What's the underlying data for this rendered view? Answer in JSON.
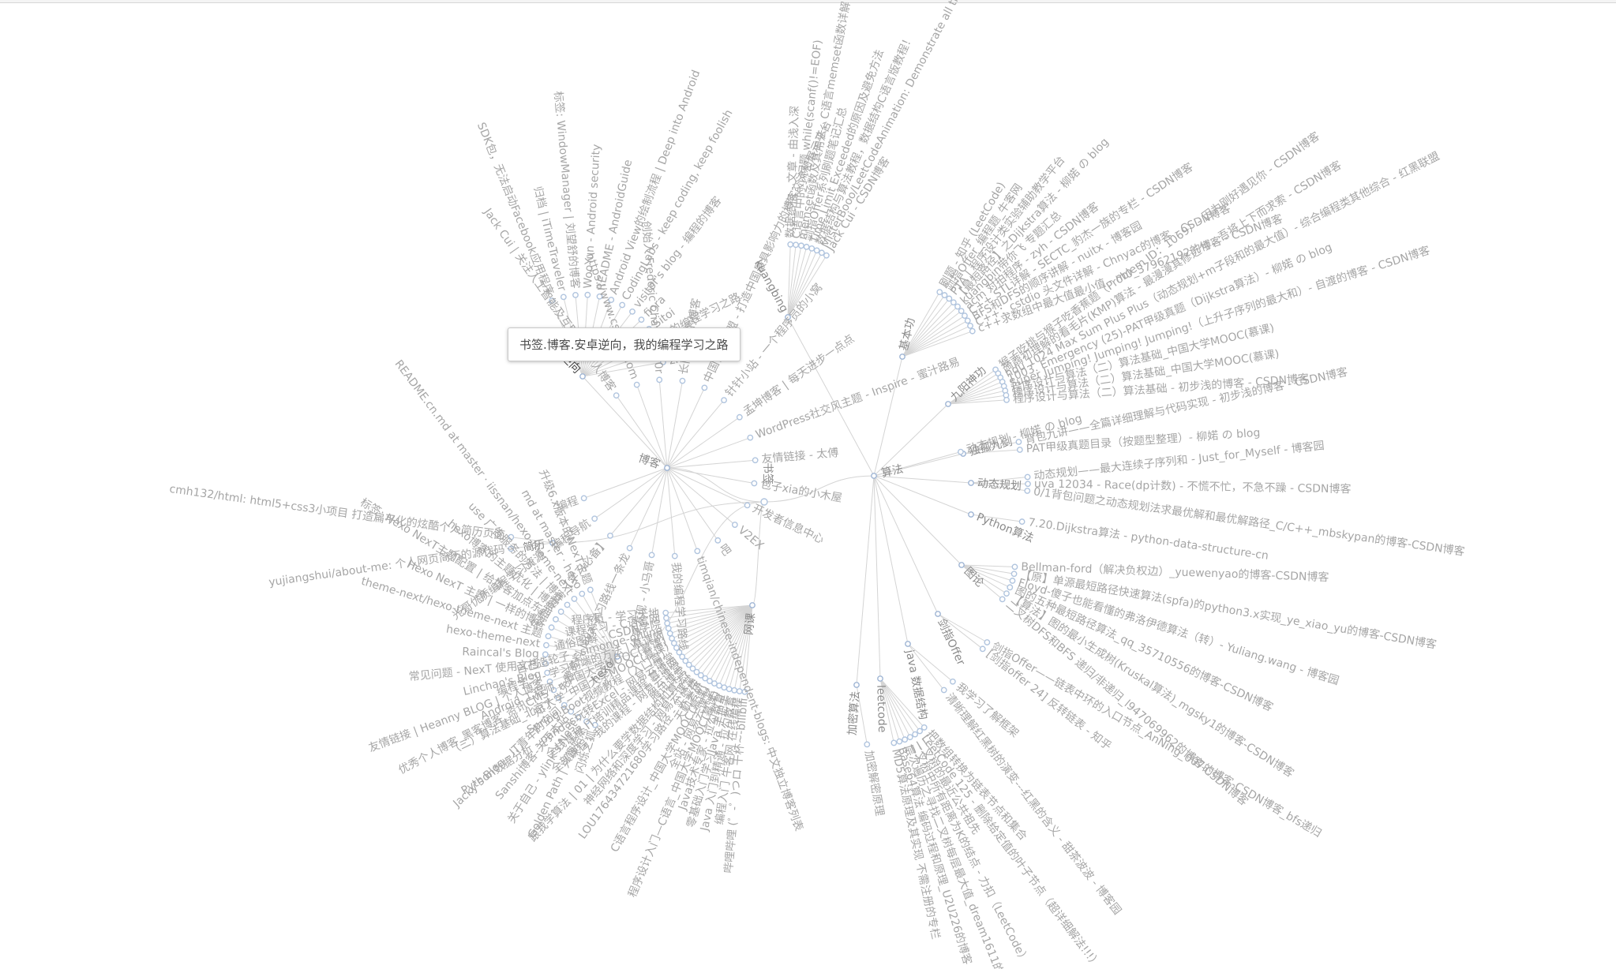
{
  "root": {
    "label": "书签",
    "children": [
      {
        "label": "博客",
        "children": [
          {
            "label": "安卓逆向",
            "children": [
              {
                "label": "SDK包，无法启动Facebook应用程序"
              },
              {
                "label": "归档 | iTimeTraveler"
              },
              {
                "label": "标签: WindowManager | 刘望舒的博客"
              },
              {
                "label": "WooYun - Android security"
              },
              {
                "label": "README - AndroidGuide"
              },
              {
                "label": "Android View的绘制流程 | Deep into Android"
              },
              {
                "label": "CodingLabs - keep coding, keep foolish"
              },
              {
                "label": "visitor's blog - 编程的博客"
              },
              {
                "label": "fiora"
              },
              {
                "label": "Sitoi"
              },
              {
                "label": "我的编程学习之路"
              },
              {
                "label": "Android"
              },
              {
                "label": "zhao"
              }
            ]
          },
          {
            "label": "Jack Cui | 关注人工智能及互联网的个人博客"
          },
          {
            "label": "https://www.csuldw.com"
          },
          {
            "label": "创始人 Frederic Chan - Tail0r"
          },
          {
            "label": "长门有希的博客"
          },
          {
            "label": "中国博客联盟 - 打造中国最具影响力的博客交流和展示平台"
          },
          {
            "label": "针针小站 - 一个程序员的小窝"
          },
          {
            "label": "孟坤博客 | 每天进步一点点"
          },
          {
            "label": "WordPress社交风主题 - Inspire - 蜜汁路易"
          },
          {
            "label": "友情链接 - 太傅"
          },
          {
            "label": "包子xia的小木屋"
          },
          {
            "label": "开发者信息中心"
          },
          {
            "label": "V2EX"
          },
          {
            "label": "吧"
          },
          {
            "label": "timqian/chinese-independent-blogs: 中文独立博客列表"
          },
          {
            "label": "我的编程学习路线"
          },
          {
            "label": "分享发现 - 小马哥"
          },
          {
            "label": "免费资料 Java 学习路线一条龙"
          },
          {
            "label": "免费资料 【学习必备】"
          },
          {
            "label": "光哥优质编程学习资源 - 编程导航"
          },
          {
            "label": "编程"
          }
        ]
      },
      {
        "label": "算法",
        "children": [
          {
            "label": "kuangbing",
            "children": [
              {
                "label": "数据结构 - 文章 - 由浅入深"
              },
              {
                "label": "C语言中的小问题 while(scanf()!=EOF)"
              },
              {
                "label": "memset函数及其用法，C语言memset函数详解"
              },
              {
                "label": "剑指Offer系列刷题笔记汇总"
              },
              {
                "label": "Time Limit Exceeded的原因及避免方法"
              },
              {
                "label": "数据结构与算法教程，数据结构C语言版教程！"
              },
              {
                "label": "MisterBooo/LeetCodeAnimation: Demonstrate all the questions"
              },
              {
                "label": "Jack Cui - CSDN博客"
              }
            ]
          },
          {
            "label": "基本功",
            "children": [
              {
                "label": "刷题 - 知乎 (LeetCode)"
              },
              {
                "label": "剑指Offer_编程题_牛客网"
              },
              {
                "label": "PTA | 程序设计类实验辅助教学平台"
              },
              {
                "label": "【最短路径】之Dijkstra算法 - 柳婼 の blog"
              },
              {
                "label": "kuangbin带你飞 专题汇总"
              },
              {
                "label": "acm 对拍程序 - zyh - CSDN博客"
              },
              {
                "label": "C++ STL详解 - SECTC_豹杰一族的专栏 - CSDN博客"
              },
              {
                "label": "BFS和DFS的顺序讲解 - nuitx - 博客园"
              },
              {
                "label": "C++：cstdio 头文件详解 - Chnyac的博客 - CSDN博客"
              },
              {
                "label": "c++求数组中最大值最小值 - m0_37962192的博客 - CSDN博客"
              }
            ]
          },
          {
            "label": "九阳神功",
            "children": [
              {
                "label": "猴子吃桃与猴子吃香蕉题（Problem ID：1069）- 因为刚好遇见你 - CSDN博客"
              },
              {
                "label": "蒟蒻初理解的看毛片(KMP)算法 - 最漫漫其修远兮，吾将上下而求索 - CSDN博客"
              },
              {
                "label": "hdu 1024 Max Sum Plus Plus（动态规划+m子段和的最大值）- 综合编程类其他综合 - 红黑联盟"
              },
              {
                "label": "1003. Emergency (25)-PAT甲级真题（Dijkstra算法）- 柳婼 の blog"
              },
              {
                "label": "Super Jumping! Jumping! Jumping!（上升子序列的最大和）- 自渡的博客 - CSDN博客"
              },
              {
                "label": "程序设计与算法（二）算法基础_中国大学MOOC(慕课)"
              },
              {
                "label": "程序设计与算法（二）算法基础_中国大学MOOC(慕课)"
              },
              {
                "label": "程序设计与算法（二）算法基础 - 初步浅的博客 - CSDN博客"
              }
            ]
          },
          {
            "label": "独孤九剑",
            "children": [
              {
                "label": "背包九讲——全篇详细理解与代码实现 - 初步浅的博客 - CSDN博客"
              },
              {
                "label": "PAT甲级真题目录（按题型整理）- 柳婼 の blog"
              }
            ]
          },
          {
            "label": "动态规划",
            "children": [
              {
                "label": "动态规划——最大连续子序列和 - Just_for_Myself - 博客园"
              },
              {
                "label": "uva 12034 - Race(dp计数) - 不慌不忙，不急不躁 - CSDN博客"
              },
              {
                "label": "0/1背包问题之动态规划法求最优解和最优解路径_C/C++_mbskypan的博客-CSDN博客"
              }
            ]
          },
          {
            "label": "Python算法",
            "children": [
              {
                "label": "7.20.Dijkstra算法 - python-data-structure-cn"
              }
            ]
          },
          {
            "label": "动态规划 - 柳婼 の blog"
          },
          {
            "label": "图论",
            "children": [
              {
                "label": "Bellman-ford（解决负权边）_yuewenyao的博客-CSDN博客"
              },
              {
                "label": "【原】单源最短路径快速算法(spfa)的python3.x实现_ye_xiao_yu的博客-CSDN博客"
              },
              {
                "label": "Floyd-傻子也能看懂的弗洛伊德算法（转）- Yuliang.wang - 博客园"
              },
              {
                "label": "图的五种最短路径算法_qq_35710556的博客-CSDN博客"
              },
              {
                "label": "【算法】图的最小生成树(Kruskal算法)_mgsky1的博客-CSDN博客"
              },
              {
                "label": "二叉树DFS和BFS 递归/非递归_l947069962的博客-CSDN博客"
              }
            ]
          },
          {
            "label": "剑指Offer",
            "children": [
              {
                "label": "剑指Offer——链表中环的入口节点_AnNing_007的博客-CSDN博客_bfs递归"
              },
              {
                "label": "[剑指offer 24] 反转链表 - 知乎"
              }
            ]
          },
          {
            "label": "java 数据结构",
            "children": [
              {
                "label": "我学习了解框架"
              },
              {
                "label": "清晰理解红黑树的演变---红黑的含义 - 甜茶波波 - 博客园"
              }
            ]
          },
          {
            "label": "leetcode",
            "children": [
              {
                "label": "把数组转换为链表节点和集合"
              },
              {
                "label": "LeetCode 125 - 删除给定值的叶子节点（超详细解法!!!）"
              },
              {
                "label": "二叉树的最近公共祖先"
              },
              {
                "label": "二叉树中所有距离为K的结点 - 力扣（LeetCode）"
              },
              {
                "label": "层次遍历之寻找二叉树每层最大值_dream1611的博客"
              },
              {
                "label": "Base64算法 编码过程和原理_U2U226的博客"
              },
              {
                "label": "MD5算法原理及其实现 不需注册的专栏"
              }
            ]
          },
          {
            "label": "加密算法",
            "children": [
              {
                "label": "加密解密原理"
              }
            ]
          }
        ]
      },
      {
        "label": "网课",
        "children": [
          {
            "label": "哔哩哔哩 (゜-゜)つロ 干杯~-bilibili"
          },
          {
            "label": "编程入门 牛客网 在线编程"
          },
          {
            "label": "Java 入门到精通 - 拉勾教育"
          },
          {
            "label": "零基础入门学习Java 手把手"
          },
          {
            "label": "Java技术专家 - 拉勾教育"
          },
          {
            "label": "程序设计入门—C语言_中国大学MOOC(慕课)"
          },
          {
            "label": "全站 - 网易云课堂"
          },
          {
            "label": "C语言程序设计_中国大学MOOC(慕课)"
          },
          {
            "label": "天勤考研"
          },
          {
            "label": "LOU176434721680学习路径 - 实验楼"
          },
          {
            "label": "神经网络和深度学习 - 网易云课堂"
          },
          {
            "label": "跟我学算法 | 01 | 为什么要学数据结构和算法?"
          },
          {
            "label": "腾讯课堂"
          },
          {
            "label": "全部课程 - 我的课程 - 网易云课堂"
          },
          {
            "label": "全栈课程 IT培训精品课程 慕课网"
          },
          {
            "label": "Python数据分析 - pandas玩转Excel - 网易云课堂"
          },
          {
            "label": "Spring Boot视频教程（入门篇）"
          },
          {
            "label": "（二）算法基础_北京大学_中国大学MOOC(慕课)"
          },
          {
            "label": "Android 工程师 - 中国大学MOOC(慕课)"
          },
          {
            "label": "编程学习 - 学习前端的方法 | 慕课网"
          },
          {
            "label": "自己造轮子 - simonge-online"
          },
          {
            "label": "通俗图解 - CSDN学院"
          },
          {
            "label": "课程学习 - C语言网"
          },
          {
            "label": "程序员 - 学习天地"
          }
        ]
      },
      {
        "label": "简历",
        "children": [
          {
            "label": "yujiangshui/about-me: 个人网页简历的源代码"
          },
          {
            "label": "cmh132/html: html5+css3小项目 打造扁平化的炫酷个人简历页面"
          }
        ]
      },
      {
        "label": "hexo",
        "children": [
          {
            "label": "闪烁之狐"
          },
          {
            "label": "Golden Path | 兴趣始然"
          },
          {
            "label": "关于自己 - ylink's Nest"
          },
          {
            "label": "Sanshi博客-关于本站"
          },
          {
            "label": "Jacky's Blog - IT青年的空间"
          },
          {
            "label": "知了"
          },
          {
            "label": "优秀个人博客_黑客博客_资讯CMS"
          },
          {
            "label": "友情链接 | Heanny BLOG | 个人博客"
          },
          {
            "label": "Linchao's Blog"
          },
          {
            "label": "常见问题 - NexT 使用文档"
          },
          {
            "label": "Raincal's Blog"
          },
          {
            "label": "hexo-theme-next"
          },
          {
            "label": "theme-next/hexo-theme-next 主题"
          },
          {
            "label": "Hexo NexT 主题 | 一样的博客"
          },
          {
            "label": "标签: Hexo NexT主题配置 | 给博客加点东西"
          },
          {
            "label": "hexo博客的主题优化 | 博客"
          },
          {
            "label": "use 广告服务的方法 | 博客"
          },
          {
            "label": "README.cn.md at master · iissnan/hexo-theme-next"
          },
          {
            "label": "md at master · hexo"
          },
          {
            "label": "升级6.x版本的NexT主题"
          }
        ]
      }
    ]
  },
  "tooltip": {
    "text": "书签.博客.安卓逆向，我的编程学习之路"
  },
  "colors": {
    "link": "#d4d4d4",
    "node_stroke": "#b0c4de",
    "label": "#a6a6a6",
    "active": "#444444"
  }
}
